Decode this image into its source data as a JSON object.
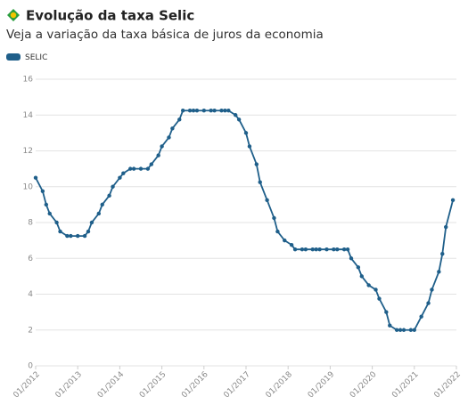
{
  "chart_data": {
    "type": "line",
    "title": "Evolução da taxa Selic",
    "subtitle": "Veja a variação da taxa básica de juros da economia",
    "x": [
      "01/2012",
      "03/2012",
      "04/2012",
      "05/2012",
      "07/2012",
      "08/2012",
      "10/2012",
      "11/2012",
      "01/2013",
      "03/2013",
      "04/2013",
      "05/2013",
      "07/2013",
      "08/2013",
      "10/2013",
      "11/2013",
      "01/2014",
      "02/2014",
      "04/2014",
      "05/2014",
      "07/2014",
      "09/2014",
      "10/2014",
      "12/2014",
      "01/2015",
      "03/2015",
      "04/2015",
      "06/2015",
      "07/2015",
      "09/2015",
      "10/2015",
      "11/2015",
      "01/2016",
      "03/2016",
      "04/2016",
      "06/2016",
      "07/2016",
      "08/2016",
      "10/2016",
      "11/2016",
      "01/2017",
      "02/2017",
      "04/2017",
      "05/2017",
      "07/2017",
      "09/2017",
      "10/2017",
      "12/2017",
      "02/2018",
      "03/2018",
      "05/2018",
      "06/2018",
      "08/2018",
      "09/2018",
      "10/2018",
      "12/2018",
      "02/2019",
      "03/2019",
      "05/2019",
      "06/2019",
      "07/2019",
      "09/2019",
      "10/2019",
      "12/2019",
      "02/2020",
      "03/2020",
      "05/2020",
      "06/2020",
      "08/2020",
      "09/2020",
      "10/2020",
      "12/2020",
      "01/2021",
      "03/2021",
      "05/2021",
      "06/2021",
      "08/2021",
      "09/2021",
      "10/2021",
      "12/2021"
    ],
    "series": [
      {
        "name": "SELIC",
        "color": "#1f5f8a",
        "values": [
          10.5,
          9.75,
          9.0,
          8.5,
          8.0,
          7.5,
          7.25,
          7.25,
          7.25,
          7.25,
          7.5,
          8.0,
          8.5,
          9.0,
          9.5,
          10.0,
          10.5,
          10.75,
          11.0,
          11.0,
          11.0,
          11.0,
          11.25,
          11.75,
          12.25,
          12.75,
          13.25,
          13.75,
          14.25,
          14.25,
          14.25,
          14.25,
          14.25,
          14.25,
          14.25,
          14.25,
          14.25,
          14.25,
          14.0,
          13.75,
          13.0,
          12.25,
          11.25,
          10.25,
          9.25,
          8.25,
          7.5,
          7.0,
          6.75,
          6.5,
          6.5,
          6.5,
          6.5,
          6.5,
          6.5,
          6.5,
          6.5,
          6.5,
          6.5,
          6.5,
          6.0,
          5.5,
          5.0,
          4.5,
          4.25,
          3.75,
          3.0,
          2.25,
          2.0,
          2.0,
          2.0,
          2.0,
          2.0,
          2.75,
          3.5,
          4.25,
          5.25,
          6.25,
          7.75,
          9.25
        ]
      }
    ],
    "xticks": [
      "01/2012",
      "01/2013",
      "01/2014",
      "01/2015",
      "01/2016",
      "01/2017",
      "01/2018",
      "01/2019",
      "01/2020",
      "01/2021",
      "01/2022"
    ],
    "ylim": [
      0,
      16
    ],
    "yticks": [
      0,
      2,
      4,
      6,
      8,
      10,
      12,
      14,
      16
    ],
    "grid": true
  }
}
